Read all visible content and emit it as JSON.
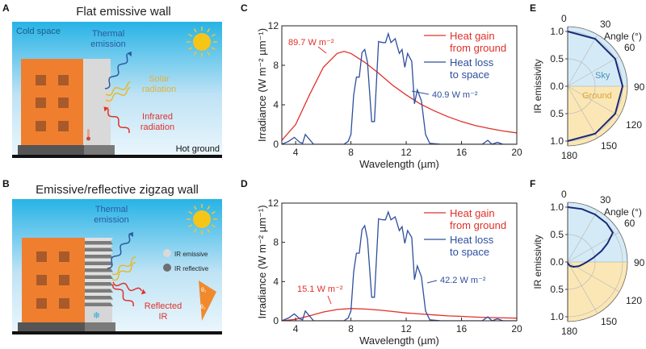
{
  "panels": {
    "A": {
      "letter": "A",
      "title": "Flat emissive wall",
      "cold_space": "Cold space",
      "thermal": [
        "Thermal",
        "emission"
      ],
      "solar": [
        "Solar",
        "radiation"
      ],
      "infrared": [
        "Infrared",
        "radiation"
      ],
      "hot_ground": "Hot ground"
    },
    "B": {
      "letter": "B",
      "title": "Emissive/reflective zigzag wall",
      "thermal": [
        "Thermal",
        "emission"
      ],
      "reflected": [
        "Reflected",
        "IR"
      ],
      "legend_emissive": "IR emissive",
      "legend_reflective": "IR reflective",
      "theta1": "θ₁",
      "theta2": "θ₂"
    }
  },
  "colors": {
    "heat_gain": "#e0302a",
    "heat_loss": "#2e4f9e",
    "sky": "#d4ebf7",
    "ground": "#fbe7b5",
    "polar_curve": "#1a2a78",
    "building": "#ef7f2f",
    "sun": "#f5c518"
  },
  "chart_data": [
    {
      "panel": "C",
      "type": "line",
      "xlabel": "Wavelength (µm)",
      "ylabel": "Irradiance (W m⁻² µm⁻¹)",
      "xlim": [
        3,
        20
      ],
      "ylim": [
        0,
        12
      ],
      "xticks": [
        "4",
        "8",
        "12",
        "16",
        "20"
      ],
      "yticks": [
        "0",
        "4",
        "8",
        "12"
      ],
      "legend": {
        "placement": "top-right"
      },
      "annotations": {
        "gain": "89.7 W m⁻²",
        "loss": "40.9 W m⁻²"
      },
      "series": [
        {
          "name": "Heat gain from ground",
          "name_lines": [
            "Heat gain",
            "from ground"
          ],
          "color": "#e0302a",
          "x": [
            3,
            4,
            5,
            6,
            7,
            7.5,
            8,
            9,
            10,
            11,
            12,
            13,
            14,
            15,
            16,
            17,
            18,
            19,
            20
          ],
          "y": [
            0.4,
            2.0,
            5.0,
            7.8,
            9.2,
            9.4,
            9.2,
            8.3,
            7.2,
            6.0,
            5.0,
            4.1,
            3.4,
            2.8,
            2.3,
            1.9,
            1.6,
            1.35,
            1.15
          ]
        },
        {
          "name": "Heat loss to space",
          "name_lines": [
            "Heat loss",
            "to space"
          ],
          "color": "#2e4f9e",
          "x": [
            3,
            3.5,
            3.9,
            4.3,
            4.5,
            4.7,
            5.0,
            5.3,
            7.5,
            7.8,
            8.0,
            8.2,
            8.4,
            8.6,
            8.8,
            9.0,
            9.2,
            9.5,
            9.7,
            10.0,
            10.3,
            10.5,
            10.7,
            10.9,
            11.2,
            11.5,
            11.7,
            11.9,
            12.1,
            12.4,
            12.6,
            12.8,
            13.1,
            13.4,
            13.7,
            14.5,
            17.5,
            17.9,
            18.2,
            18.6,
            19,
            20
          ],
          "y": [
            0,
            0.3,
            0.7,
            0.2,
            0.1,
            1.0,
            0.5,
            0,
            0,
            0.3,
            1,
            5,
            6.8,
            6.8,
            9.3,
            9.6,
            8.3,
            2.3,
            2.3,
            10.4,
            10.3,
            10.3,
            11.2,
            10.3,
            10.7,
            9.2,
            9.6,
            7.8,
            9.2,
            8.4,
            4.1,
            5.5,
            4.4,
            1,
            0.1,
            0,
            0,
            0.4,
            0,
            0.2,
            0,
            0
          ]
        }
      ]
    },
    {
      "panel": "D",
      "type": "line",
      "xlabel": "Wavelength (µm)",
      "ylabel": "Irradiance (W m⁻² µm⁻¹)",
      "xlim": [
        3,
        20
      ],
      "ylim": [
        0,
        12
      ],
      "xticks": [
        "4",
        "8",
        "12",
        "16",
        "20"
      ],
      "yticks": [
        "0",
        "4",
        "8",
        "12"
      ],
      "legend": {
        "placement": "top-right"
      },
      "annotations": {
        "gain": "15.1 W m⁻²",
        "loss": "42.2 W m⁻²"
      },
      "series": [
        {
          "name": "Heat gain from ground",
          "name_lines": [
            "Heat gain",
            "from ground"
          ],
          "color": "#e0302a",
          "x": [
            3,
            4,
            5,
            6,
            7,
            8,
            9,
            10,
            11,
            12,
            13,
            14,
            15,
            16,
            17,
            18,
            19,
            20
          ],
          "y": [
            0,
            0.15,
            0.5,
            0.9,
            1.15,
            1.25,
            1.2,
            1.1,
            0.95,
            0.8,
            0.7,
            0.6,
            0.5,
            0.45,
            0.38,
            0.33,
            0.3,
            0.27
          ]
        },
        {
          "name": "Heat loss to space",
          "name_lines": [
            "Heat loss",
            "to space"
          ],
          "color": "#2e4f9e",
          "x": [
            3,
            3.5,
            3.9,
            4.3,
            4.5,
            4.7,
            5.0,
            5.3,
            7.5,
            7.8,
            8.0,
            8.2,
            8.4,
            8.6,
            8.8,
            9.0,
            9.2,
            9.5,
            9.7,
            10.0,
            10.3,
            10.5,
            10.7,
            10.9,
            11.2,
            11.5,
            11.7,
            11.9,
            12.1,
            12.4,
            12.6,
            12.8,
            13.1,
            13.4,
            13.7,
            14.5,
            17.5,
            17.9,
            18.2,
            18.6,
            19,
            20
          ],
          "y": [
            0,
            0.3,
            0.7,
            0.2,
            0.1,
            1.0,
            0.5,
            0,
            0,
            0.3,
            1,
            5,
            6.9,
            6.9,
            9.3,
            9.7,
            8.3,
            2.4,
            2.4,
            10.4,
            10.3,
            10.3,
            11.1,
            10.3,
            10.6,
            9.2,
            9.6,
            7.9,
            9.2,
            8.5,
            4.2,
            5.6,
            4.5,
            1,
            0.1,
            0,
            0,
            0.4,
            0,
            0.2,
            0,
            0
          ]
        }
      ]
    },
    {
      "panel": "E",
      "type": "polar",
      "rlabel": "IR emissivity",
      "angle_label": "Angle (°)",
      "rticks": [
        "1.0",
        "0.5",
        "0.0",
        "0.5",
        "1.0"
      ],
      "angle_ticks": [
        "0",
        "30",
        "60",
        "90",
        "120",
        "150",
        "180"
      ],
      "region_labels": {
        "sky": "Sky",
        "ground": "Ground"
      },
      "angle_deg": [
        0,
        30,
        60,
        90,
        120,
        150,
        180
      ],
      "emissivity": [
        1,
        1,
        1,
        1,
        1,
        1,
        1
      ]
    },
    {
      "panel": "F",
      "type": "polar",
      "rlabel": "IR emissivity",
      "angle_label": "Angle (°)",
      "rticks": [
        "1.0",
        "0.5",
        "0.0",
        "0.5",
        "1.0"
      ],
      "angle_ticks": [
        "0",
        "30",
        "60",
        "90",
        "120",
        "150",
        "180"
      ],
      "angle_deg": [
        0,
        15,
        30,
        45,
        57,
        65,
        72,
        81,
        90,
        100,
        110,
        130,
        150,
        170,
        180
      ],
      "emissivity": [
        1,
        1,
        1,
        1,
        0.98,
        0.8,
        0.65,
        0.47,
        0.35,
        0.27,
        0.22,
        0.14,
        0.08,
        0.03,
        0.01
      ]
    }
  ]
}
